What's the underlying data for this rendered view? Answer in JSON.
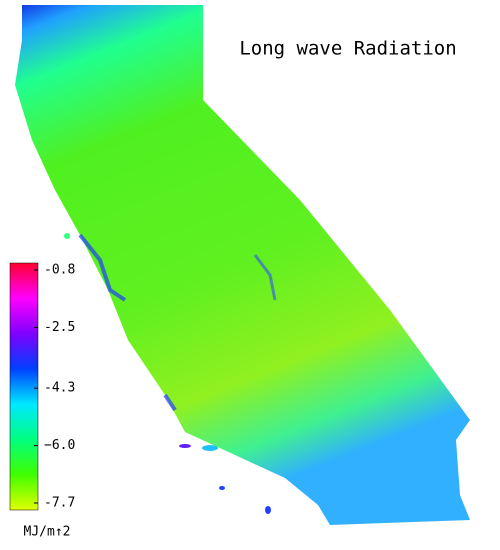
{
  "title": "Long wave Radiation",
  "colorbar": {
    "range": [
      -7.7,
      -0.8
    ],
    "ticks": [
      -0.8,
      -2.5,
      -4.3,
      {
        "value": -6.0,
        "label": "−6.0"
      },
      -7.7
    ],
    "unit_label": "MJ/m↑2",
    "colors": [
      "#e0ff00",
      "#40ff00",
      "#00ff80",
      "#00e8ff",
      "#0040ff",
      "#8000ff",
      "#ff00ff",
      "#ff0030"
    ]
  }
}
